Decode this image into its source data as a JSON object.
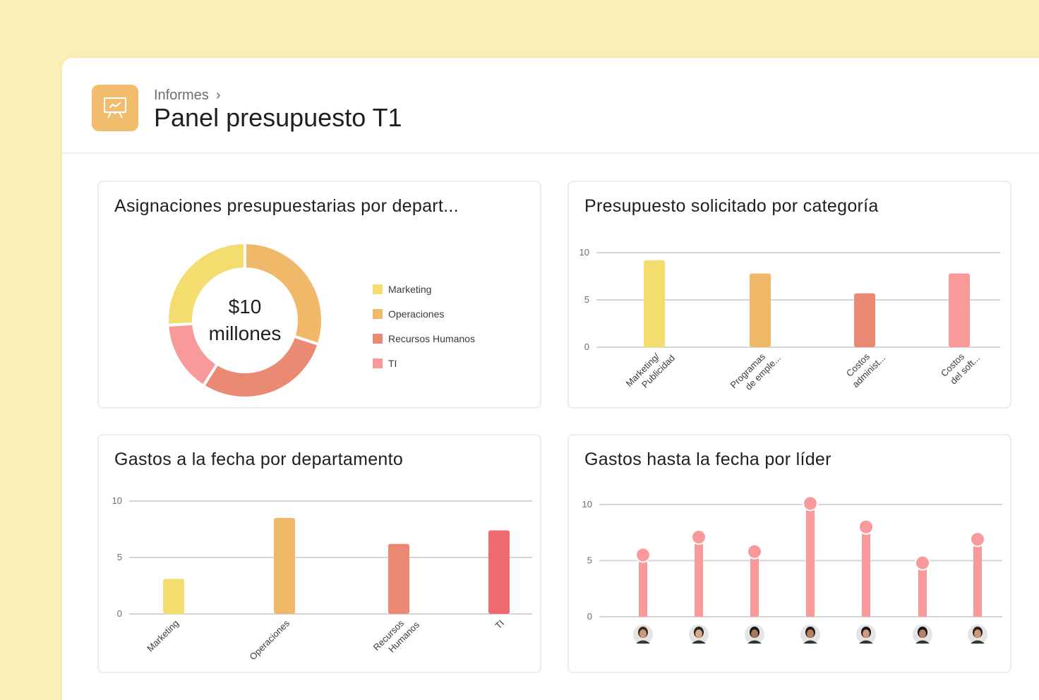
{
  "header": {
    "breadcrumb": "Informes",
    "breadcrumb_chevron": "›",
    "title": "Panel presupuesto T1",
    "icon": "presentation-chart-icon",
    "icon_color": "#f1bc6b"
  },
  "colors": {
    "yellow": "#f5dc6e",
    "orange": "#f0b96a",
    "salmon": "#ea8a72",
    "pink": "#f89a9a",
    "red": "#ee6a6e"
  },
  "chart_data": [
    {
      "type": "pie",
      "variant": "donut",
      "title": "Asignaciones presupuestarias por depart...",
      "center_label": [
        "$10",
        "millones"
      ],
      "categories": [
        "Marketing",
        "Operaciones",
        "Recursos Humanos",
        "TI"
      ],
      "values": [
        26,
        30,
        29,
        15
      ],
      "colors": [
        "#f5dc6e",
        "#f0b96a",
        "#ea8a72",
        "#f89a9a"
      ],
      "legend": "right"
    },
    {
      "type": "bar",
      "title": "Presupuesto solicitado por categoría",
      "categories": [
        [
          "Marketing/",
          "Publicidad"
        ],
        [
          "Programas",
          "de emple..."
        ],
        [
          "Costos",
          "administ..."
        ],
        [
          "Costos",
          "del soft..."
        ]
      ],
      "values": [
        9.2,
        7.8,
        5.7,
        7.8
      ],
      "ylim": [
        0,
        10
      ],
      "yticks": [
        "0",
        "5",
        "10"
      ],
      "grid": true,
      "colors": [
        "#f5dc6e",
        "#f0b96a",
        "#ea8a72",
        "#f89a9a"
      ]
    },
    {
      "type": "bar",
      "title": "Gastos a la fecha por departamento",
      "categories": [
        [
          "Marketing"
        ],
        [
          "Operaciones"
        ],
        [
          "Recursos",
          "Humanos"
        ],
        [
          "TI"
        ]
      ],
      "values": [
        3.1,
        8.5,
        6.2,
        7.4
      ],
      "ylim": [
        0,
        10
      ],
      "yticks": [
        "0",
        "5",
        "10"
      ],
      "grid": true,
      "colors": [
        "#f5dc6e",
        "#f0b96a",
        "#ea8a72",
        "#ee6a6e"
      ]
    },
    {
      "type": "bar",
      "variant": "lollipop",
      "title": "Gastos hasta la fecha por líder",
      "categories": [
        "avatar-1",
        "avatar-2",
        "avatar-3",
        "avatar-4",
        "avatar-5",
        "avatar-6",
        "avatar-7"
      ],
      "values": [
        5.5,
        7.1,
        5.8,
        10.1,
        8.0,
        4.8,
        6.9
      ],
      "ylim": [
        0,
        10
      ],
      "yticks": [
        "0",
        "5",
        "10"
      ],
      "grid": true,
      "colors": [
        "#f89a9a"
      ]
    }
  ]
}
